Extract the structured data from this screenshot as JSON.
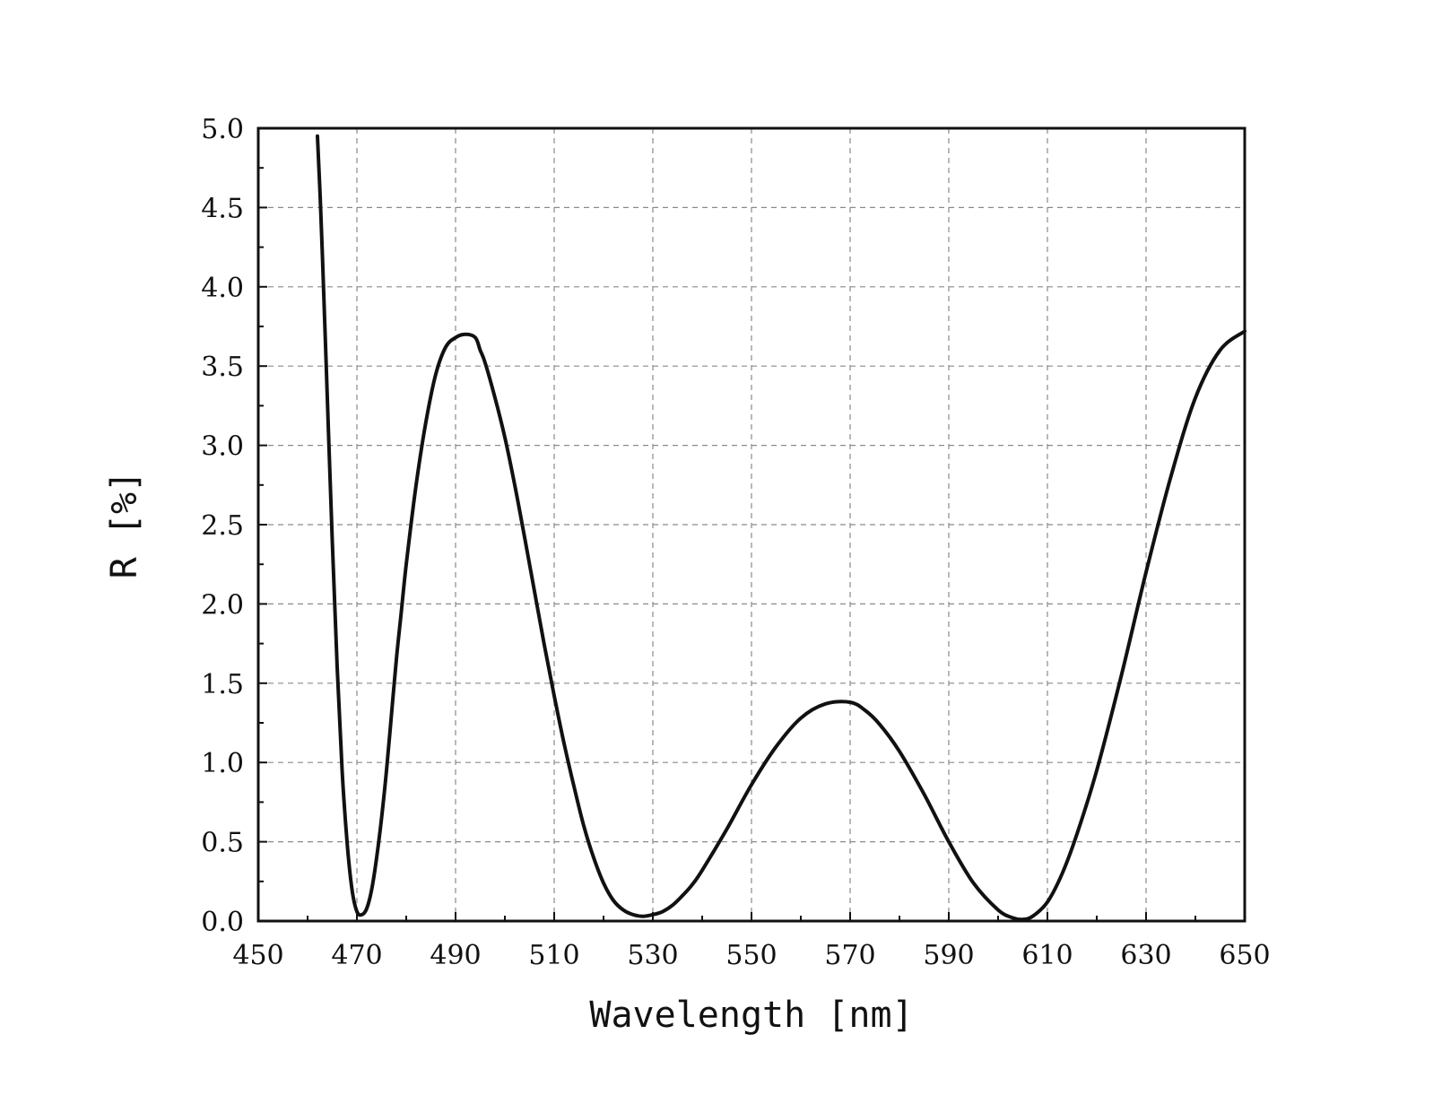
{
  "chart_data": {
    "type": "line",
    "title": "",
    "xlabel": "Wavelength [nm]",
    "ylabel": "R [%]",
    "xlim": [
      450,
      650
    ],
    "ylim": [
      0,
      5
    ],
    "x_ticks": [
      450,
      470,
      490,
      510,
      530,
      550,
      570,
      590,
      610,
      630,
      650
    ],
    "x_tick_labels": [
      "450",
      "470",
      "490",
      "510",
      "530",
      "550",
      "570",
      "590",
      "610",
      "630",
      "650"
    ],
    "y_ticks": [
      0,
      0.5,
      1,
      1.5,
      2,
      2.5,
      3,
      3.5,
      4,
      4.5,
      5
    ],
    "y_tick_labels": [
      "0.0",
      "0.5",
      "1.0",
      "1.5",
      "2.0",
      "2.5",
      "3.0",
      "3.5",
      "4.0",
      "4.5",
      "5.0"
    ],
    "grid": true,
    "grid_style": "dashed",
    "line_color": "#111111",
    "series": [
      {
        "x": [
          462,
          462.5,
          463,
          464,
          465,
          466,
          467,
          468,
          469,
          470,
          471,
          472,
          473,
          474,
          475,
          476,
          477,
          478,
          479,
          480,
          482,
          484,
          486,
          488,
          490,
          492,
          494,
          495,
          496,
          498,
          500,
          502,
          504,
          506,
          508,
          510,
          512,
          514,
          516,
          518,
          520,
          522,
          524,
          526,
          528,
          530,
          532,
          534,
          536,
          538,
          540,
          545,
          550,
          555,
          560,
          565,
          570,
          573,
          576,
          580,
          585,
          590,
          595,
          600,
          603,
          605,
          607,
          610,
          613,
          616,
          620,
          625,
          630,
          635,
          640,
          645,
          650
        ],
        "y": [
          4.95,
          4.6,
          4.2,
          3.3,
          2.4,
          1.6,
          0.95,
          0.5,
          0.2,
          0.06,
          0.04,
          0.08,
          0.2,
          0.4,
          0.65,
          0.95,
          1.3,
          1.65,
          1.95,
          2.25,
          2.75,
          3.15,
          3.45,
          3.62,
          3.68,
          3.7,
          3.68,
          3.6,
          3.52,
          3.3,
          3.05,
          2.75,
          2.42,
          2.08,
          1.74,
          1.42,
          1.12,
          0.85,
          0.6,
          0.4,
          0.24,
          0.13,
          0.07,
          0.04,
          0.03,
          0.04,
          0.06,
          0.1,
          0.16,
          0.23,
          0.32,
          0.58,
          0.86,
          1.1,
          1.28,
          1.37,
          1.38,
          1.33,
          1.24,
          1.07,
          0.8,
          0.5,
          0.24,
          0.07,
          0.02,
          0.01,
          0.03,
          0.12,
          0.3,
          0.55,
          0.95,
          1.55,
          2.2,
          2.8,
          3.3,
          3.6,
          3.72
        ]
      }
    ]
  }
}
